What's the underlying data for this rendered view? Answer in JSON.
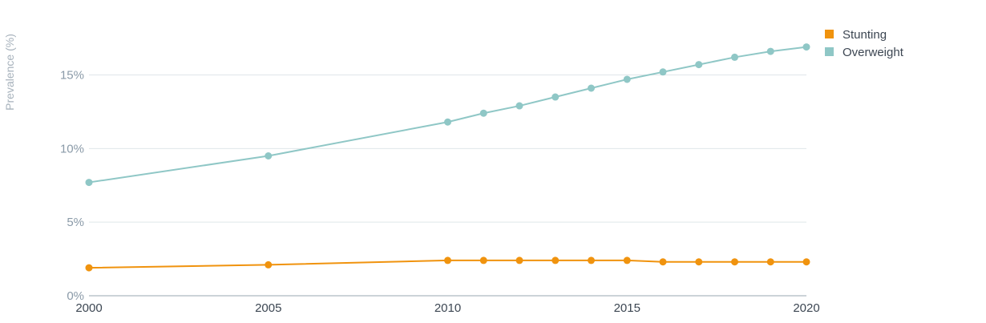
{
  "chart_data": {
    "type": "line",
    "title": "",
    "xlabel": "",
    "ylabel": "Prevalence (%)",
    "x": [
      2000,
      2005,
      2010,
      2011,
      2012,
      2013,
      2014,
      2015,
      2016,
      2017,
      2018,
      2019,
      2020
    ],
    "x_ticks": [
      2000,
      2005,
      2010,
      2015,
      2020
    ],
    "x_tick_labels": [
      "2000",
      "2005",
      "2010",
      "2015",
      "2020"
    ],
    "y_ticks": [
      0,
      5,
      10,
      15
    ],
    "y_tick_labels": [
      "0%",
      "5%",
      "10%",
      "15%"
    ],
    "xlim": [
      2000,
      2020
    ],
    "ylim": [
      0,
      19
    ],
    "grid": true,
    "legend_position": "top-right",
    "series": [
      {
        "name": "Stunting",
        "color": "#f0930e",
        "values": [
          1.9,
          2.1,
          2.4,
          2.4,
          2.4,
          2.4,
          2.4,
          2.4,
          2.3,
          2.3,
          2.3,
          2.3,
          2.3
        ]
      },
      {
        "name": "Overweight",
        "color": "#8fc7c6",
        "values": [
          7.7,
          9.5,
          11.8,
          12.4,
          12.9,
          13.5,
          14.1,
          14.7,
          15.2,
          15.7,
          16.2,
          16.6,
          16.9
        ]
      }
    ]
  }
}
